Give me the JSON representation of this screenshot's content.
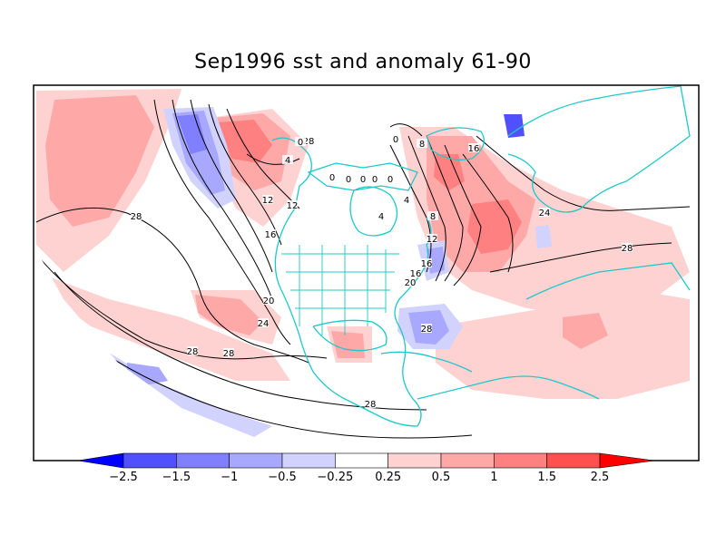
{
  "title": "Sep1996 sst and anomaly 61-90",
  "colors": {
    "land_outline": "#1fc8c8",
    "contour": "#000000",
    "frame": "#000000",
    "background": "#ffffff"
  },
  "colorbar": {
    "tick_labels": [
      "−2.5",
      "−1.5",
      "−1",
      "−0.5",
      "−0.25",
      "0.25",
      "0.5",
      "1",
      "1.5",
      "2.5"
    ],
    "levels": [
      -2.5,
      -1.5,
      -1,
      -0.5,
      -0.25,
      0.25,
      0.5,
      1,
      1.5,
      2.5
    ],
    "bin_colors": [
      "#0000ff",
      "#5050ff",
      "#8080ff",
      "#a8a8ff",
      "#d2d2ff",
      "#ffffff",
      "#ffd2d2",
      "#ffa8a8",
      "#ff8080",
      "#ff5050",
      "#ff0000"
    ],
    "extend": "both"
  },
  "contour_labels": [
    "0",
    "4",
    "8",
    "12",
    "16",
    "20",
    "24",
    "28"
  ],
  "contour_label_values": [
    0,
    4,
    8,
    12,
    16,
    20,
    24,
    28
  ]
}
